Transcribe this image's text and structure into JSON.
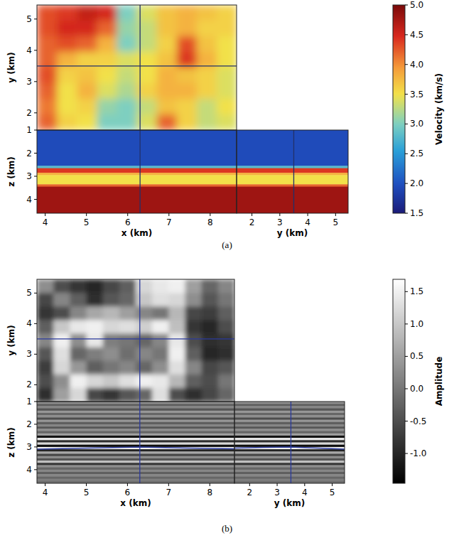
{
  "chart_data": [
    {
      "type": "heatmap",
      "caption": "(a)",
      "color": "jet",
      "xlabel": "x (km)",
      "ylabel": "y (km)",
      "zlabel": "z (km)",
      "xlim": [
        3.8,
        8.64
      ],
      "ylim": [
        1.45,
        5.45
      ],
      "zlim": [
        1,
        4.6
      ],
      "xticks": [
        4,
        5,
        6,
        7,
        8
      ],
      "yticks": [
        2,
        3,
        4,
        5
      ],
      "zticks": [
        1,
        2,
        3,
        4
      ],
      "slice": {
        "x": 6.3,
        "y": 3.5
      },
      "depth_slice": {
        "values": [
          [
            4.3,
            4.4,
            4.6,
            4.5,
            3.0,
            3.4,
            3.7,
            3.8,
            3.7,
            3.6
          ],
          [
            4.3,
            4.5,
            4.5,
            4.2,
            3.1,
            3.3,
            3.7,
            3.8,
            3.6,
            3.6
          ],
          [
            4.2,
            4.3,
            4.2,
            3.8,
            3.0,
            3.3,
            3.6,
            4.3,
            3.7,
            3.5
          ],
          [
            4.2,
            3.8,
            3.6,
            3.6,
            3.4,
            3.5,
            3.7,
            4.4,
            3.8,
            3.5
          ],
          [
            4.3,
            3.6,
            3.7,
            3.5,
            3.3,
            3.5,
            3.8,
            3.7,
            3.6,
            3.4
          ],
          [
            4.2,
            3.5,
            3.8,
            3.4,
            3.2,
            3.6,
            3.8,
            3.8,
            3.6,
            3.4
          ],
          [
            4.1,
            3.5,
            3.6,
            3.1,
            3.0,
            3.3,
            3.7,
            3.6,
            3.3,
            3.5
          ],
          [
            4.2,
            3.6,
            3.5,
            3.0,
            3.0,
            3.4,
            4.2,
            3.6,
            3.3,
            3.4
          ]
        ]
      },
      "vertical_profile": {
        "z_edges": [
          1,
          2.55,
          2.65,
          2.85,
          2.95,
          3.35,
          3.45,
          4.6
        ],
        "values": [
          1.95,
          2.8,
          4.4,
          3.8,
          3.5,
          4.2,
          4.8
        ]
      },
      "colorbar": {
        "label": "Velocity (km/s)",
        "range": [
          1.5,
          5.0
        ],
        "ticks": [
          1.5,
          {
            "value": 2,
            "label": "2.0"
          },
          2.5,
          {
            "value": 3,
            "label": "3.0"
          },
          3.5,
          {
            "value": 4,
            "label": "4.0"
          },
          4.5,
          {
            "value": 5,
            "label": "5.0"
          }
        ]
      }
    },
    {
      "type": "heatmap",
      "caption": "(b)",
      "color": "gray",
      "xlabel": "x (km)",
      "ylabel": "y (km)",
      "zlabel": "z (km)",
      "xlim": [
        3.8,
        8.6
      ],
      "ylim": [
        1.45,
        5.45
      ],
      "zlim": [
        1,
        4.6
      ],
      "xticks": [
        4,
        5,
        6,
        7,
        8
      ],
      "yticks": [
        2,
        3,
        4,
        5
      ],
      "zticks": [
        1,
        2,
        3,
        4
      ],
      "slice": {
        "x": 6.3,
        "y": 3.5
      },
      "depth_slice": {
        "values": [
          [
            0.3,
            -0.5,
            -0.8,
            -1.0,
            -0.6,
            -0.3,
            1.2,
            1.4,
            1.5,
            0.5,
            -0.2,
            0.2
          ],
          [
            -0.6,
            0.2,
            -0.3,
            -0.9,
            -0.4,
            -0.2,
            1.0,
            1.3,
            1.2,
            0.3,
            -0.4,
            0.0
          ],
          [
            -0.8,
            -0.5,
            0.2,
            0.6,
            0.8,
            0.5,
            0.2,
            0.0,
            0.8,
            -0.6,
            -0.7,
            -0.3
          ],
          [
            -0.3,
            1.0,
            1.4,
            1.5,
            1.2,
            1.3,
            1.1,
            1.5,
            0.9,
            -0.8,
            -1.0,
            -0.5
          ],
          [
            0.2,
            1.5,
            0.3,
            1.4,
            0.1,
            0.0,
            -0.2,
            0.2,
            1.4,
            -0.5,
            -0.9,
            -0.8
          ],
          [
            -0.4,
            1.3,
            -0.2,
            0.1,
            0.3,
            -0.1,
            0.2,
            0.0,
            1.5,
            -0.3,
            -1.0,
            -0.9
          ],
          [
            -0.7,
            1.2,
            0.4,
            -0.3,
            0.0,
            0.2,
            -0.2,
            0.3,
            1.3,
            0.2,
            -0.6,
            -0.4
          ],
          [
            -0.5,
            0.3,
            1.5,
            1.2,
            1.0,
            1.3,
            1.5,
            1.4,
            0.8,
            -0.3,
            -0.5,
            0.0
          ],
          [
            -0.9,
            0.5,
            1.2,
            -0.6,
            -0.8,
            -0.4,
            -0.2,
            1.3,
            -0.5,
            -0.9,
            -0.6,
            -0.2
          ]
        ]
      },
      "vertical_profile": {
        "z_edges": [
          1.0,
          1.1,
          1.2,
          1.3,
          1.4,
          1.5,
          1.6,
          1.7,
          1.8,
          1.9,
          2.0,
          2.1,
          2.2,
          2.3,
          2.4,
          2.5,
          2.6,
          2.7,
          2.8,
          2.9,
          3.0,
          3.1,
          3.2,
          3.3,
          3.4,
          3.5,
          3.6,
          3.7,
          3.8,
          3.9,
          4.0,
          4.1,
          4.2,
          4.3,
          4.4,
          4.5,
          4.6
        ],
        "values": [
          0.3,
          -0.3,
          0.2,
          -0.4,
          0.4,
          -0.2,
          0.3,
          -0.5,
          0.4,
          -0.3,
          0.2,
          -0.4,
          0.3,
          -0.2,
          0.5,
          -1.2,
          1.4,
          -0.9,
          1.2,
          -1.3,
          1.5,
          -1.0,
          0.6,
          -0.6,
          0.3,
          -0.4,
          0.9,
          -0.8,
          0.3,
          -0.2,
          0.2,
          -0.3,
          0.2,
          -0.2,
          0.1,
          -0.1
        ]
      },
      "horizon": {
        "x": [
          3.8,
          5,
          6.3,
          7.5,
          8.6
        ],
        "z": [
          3.1,
          3.05,
          3.0,
          3.05,
          3.08
        ]
      },
      "horizon_crossline": {
        "y": [
          1.45,
          2.5,
          3.5,
          4.5,
          5.45
        ],
        "z": [
          3.05,
          3.02,
          3.0,
          3.05,
          3.1
        ]
      },
      "colorbar": {
        "label": "Amplitude",
        "range": [
          -1.46,
          1.69
        ],
        "ticks": [
          {
            "value": -1,
            "label": "-1.0"
          },
          -0.5,
          {
            "value": 0,
            "label": "0.0"
          },
          0.5,
          {
            "value": 1,
            "label": "1.0"
          },
          1.5
        ]
      }
    }
  ]
}
